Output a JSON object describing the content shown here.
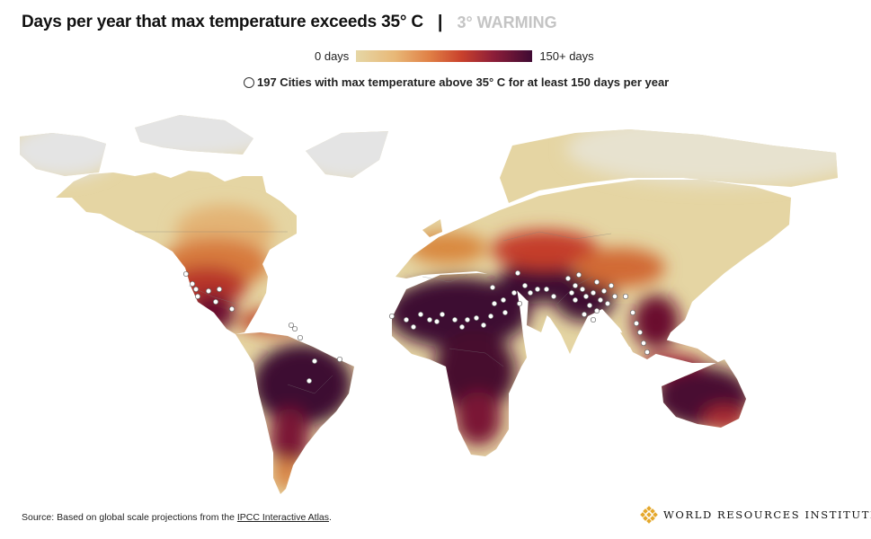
{
  "header": {
    "title": "Days per year that max temperature exceeds 35° C",
    "separator": "|",
    "scenario": "3° WARMING"
  },
  "legend": {
    "min_label": "0 days",
    "max_label": "150+ days",
    "colors": [
      "#e6d7a6",
      "#e8b877",
      "#e07f45",
      "#c9412c",
      "#8d1e39",
      "#3f0a33"
    ],
    "cities_label": "197 Cities with max temperature above 35° C for at least 150 days per year"
  },
  "map": {
    "no_data_color": "#e3e3e3",
    "city_marker_color": "#ffffff"
  },
  "footer": {
    "source_prefix": "Source: Based on global scale projections from the ",
    "source_link": "IPCC Interactive Atlas",
    "source_suffix": ".",
    "logo_text": "WORLD RESOURCES INSTITUTE"
  }
}
